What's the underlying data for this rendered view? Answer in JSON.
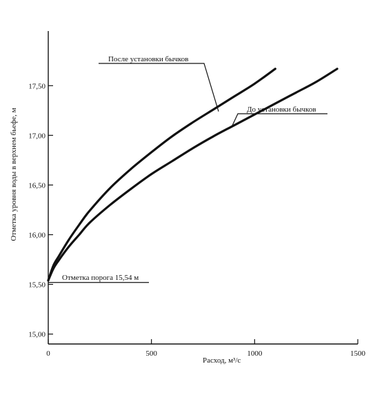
{
  "chart_data": {
    "type": "line",
    "title": "",
    "xlabel": "Расход, м³/с",
    "ylabel": "Отметка уровня воды в верхнем бьефе, м",
    "xlim": [
      0,
      1500
    ],
    "ylim": [
      14.9,
      18.05
    ],
    "x_ticks": [
      {
        "value": 0,
        "label": "0"
      },
      {
        "value": 500,
        "label": "500"
      },
      {
        "value": 1000,
        "label": "1000"
      },
      {
        "value": 1500,
        "label": "1500"
      }
    ],
    "y_ticks": [
      {
        "value": 15.0,
        "label": "15,00"
      },
      {
        "value": 15.5,
        "label": "15,50"
      },
      {
        "value": 16.0,
        "label": "16,00"
      },
      {
        "value": 16.5,
        "label": "16,50"
      },
      {
        "value": 17.0,
        "label": "17,00"
      },
      {
        "value": 17.5,
        "label": "17,50"
      }
    ],
    "grid": false,
    "legend": "none",
    "series": [
      {
        "name": "После установки бычков",
        "x": [
          0,
          25,
          50,
          100,
          150,
          200,
          300,
          400,
          500,
          600,
          700,
          800,
          900,
          1000,
          1100
        ],
        "y": [
          15.54,
          15.69,
          15.78,
          15.95,
          16.1,
          16.24,
          16.47,
          16.66,
          16.83,
          16.99,
          17.13,
          17.26,
          17.39,
          17.52,
          17.67
        ]
      },
      {
        "name": "До установки бычков",
        "x": [
          0,
          25,
          50,
          100,
          150,
          200,
          300,
          400,
          500,
          600,
          700,
          800,
          900,
          1000,
          1100,
          1200,
          1300,
          1400
        ],
        "y": [
          15.54,
          15.66,
          15.74,
          15.88,
          16.0,
          16.12,
          16.3,
          16.46,
          16.61,
          16.74,
          16.87,
          16.99,
          17.1,
          17.21,
          17.32,
          17.43,
          17.54,
          17.67
        ]
      }
    ],
    "annotations": [
      {
        "text": "После установки бычков",
        "x": 825,
        "y": 17.24
      },
      {
        "text": "До установки бычков",
        "x": 890,
        "y": 17.09
      },
      {
        "text": "Отметка порога 15,54 м",
        "x": 0,
        "y": 15.54
      }
    ],
    "colors": {
      "line": "#111111",
      "axis": "#111111",
      "background": "#ffffff"
    }
  }
}
